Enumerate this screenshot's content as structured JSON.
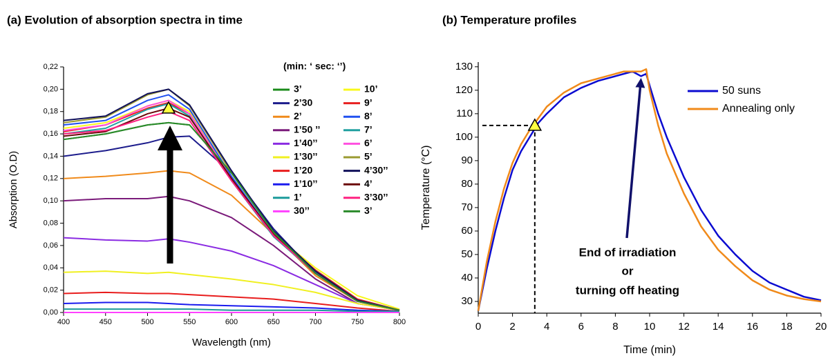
{
  "chart_data": [
    {
      "type": "line",
      "title": "(a) Evolution of absorption spectra in time",
      "x_label": "Wavelength (nm)",
      "y_label": "Absorption (O.D)",
      "legend_title": "(min: ‘    sec: ‘’)",
      "xlim": [
        400,
        800
      ],
      "ylim": [
        0,
        0.22
      ],
      "xticks": [
        400,
        450,
        500,
        550,
        600,
        650,
        700,
        750,
        800
      ],
      "yticks": [
        {
          "value": 0,
          "label": "0,00"
        },
        {
          "value": 0.02,
          "label": "0,02"
        },
        {
          "value": 0.04,
          "label": "0,04"
        },
        {
          "value": 0.06,
          "label": "0,06"
        },
        {
          "value": 0.08,
          "label": "0,08"
        },
        {
          "value": 0.1,
          "label": "0,10"
        },
        {
          "value": 0.12,
          "label": "0,12"
        },
        {
          "value": 0.14,
          "label": "0,14"
        },
        {
          "value": 0.16,
          "label": "0,16"
        },
        {
          "value": 0.18,
          "label": "0,18"
        },
        {
          "value": 0.2,
          "label": "0,20"
        },
        {
          "value": 0.22,
          "label": "0,22"
        }
      ],
      "x": [
        400,
        450,
        500,
        525,
        550,
        600,
        650,
        700,
        750,
        800
      ],
      "marker": {
        "x": 525,
        "y": 0.183
      },
      "series": [
        {
          "name": "3’",
          "color": "#1a8a1a",
          "values": [
            0.155,
            0.16,
            0.168,
            0.17,
            0.168,
            0.125,
            0.072,
            0.035,
            0.01,
            0.002
          ]
        },
        {
          "name": "2’30",
          "color": "#1c1c8c",
          "values": [
            0.14,
            0.145,
            0.152,
            0.157,
            0.158,
            0.125,
            0.075,
            0.035,
            0.01,
            0.002
          ]
        },
        {
          "name": "2’",
          "color": "#f08a1a",
          "values": [
            0.12,
            0.122,
            0.125,
            0.127,
            0.125,
            0.105,
            0.07,
            0.033,
            0.01,
            0.002
          ]
        },
        {
          "name": "1’50 ’’",
          "color": "#7a1a7a",
          "values": [
            0.1,
            0.102,
            0.102,
            0.104,
            0.1,
            0.085,
            0.06,
            0.03,
            0.008,
            0.002
          ]
        },
        {
          "name": "1’40’’",
          "color": "#8a2be2",
          "values": [
            0.067,
            0.065,
            0.064,
            0.066,
            0.063,
            0.055,
            0.042,
            0.025,
            0.008,
            0.002
          ]
        },
        {
          "name": "1’30’’",
          "color": "#f0f020",
          "values": [
            0.036,
            0.037,
            0.035,
            0.036,
            0.034,
            0.03,
            0.025,
            0.018,
            0.008,
            0.002
          ]
        },
        {
          "name": "1’20",
          "color": "#e81c1c",
          "values": [
            0.017,
            0.018,
            0.017,
            0.017,
            0.016,
            0.014,
            0.012,
            0.008,
            0.004,
            0.001
          ]
        },
        {
          "name": "1’10’’",
          "color": "#1a1aee",
          "values": [
            0.008,
            0.009,
            0.009,
            0.008,
            0.007,
            0.006,
            0.005,
            0.004,
            0.002,
            0.001
          ]
        },
        {
          "name": "1’",
          "color": "#1a9a9a",
          "values": [
            0.003,
            0.003,
            0.003,
            0.003,
            0.003,
            0.002,
            0.002,
            0.002,
            0.001,
            0.001
          ]
        },
        {
          "name": "30’’",
          "color": "#ff40ff",
          "values": [
            0,
            0,
            0,
            0,
            0,
            0,
            0,
            0,
            0,
            0
          ]
        },
        {
          "name": "10’",
          "color": "#f8f81a",
          "values": [
            0.165,
            0.17,
            0.185,
            0.19,
            0.18,
            0.12,
            0.07,
            0.04,
            0.015,
            0.003
          ]
        },
        {
          "name": "9’",
          "color": "#e82020",
          "values": [
            0.162,
            0.168,
            0.183,
            0.188,
            0.178,
            0.12,
            0.07,
            0.038,
            0.012,
            0.002
          ]
        },
        {
          "name": "8’",
          "color": "#2050f0",
          "values": [
            0.168,
            0.172,
            0.19,
            0.195,
            0.182,
            0.122,
            0.07,
            0.036,
            0.011,
            0.002
          ]
        },
        {
          "name": "7’",
          "color": "#20a0a0",
          "values": [
            0.16,
            0.165,
            0.182,
            0.187,
            0.176,
            0.118,
            0.068,
            0.035,
            0.01,
            0.002
          ]
        },
        {
          "name": "6’",
          "color": "#ff50e0",
          "values": [
            0.163,
            0.168,
            0.185,
            0.19,
            0.178,
            0.12,
            0.069,
            0.035,
            0.01,
            0.002
          ]
        },
        {
          "name": "5’",
          "color": "#9a9a30",
          "values": [
            0.17,
            0.175,
            0.195,
            0.2,
            0.185,
            0.125,
            0.072,
            0.037,
            0.011,
            0.002
          ]
        },
        {
          "name": "4’30’’",
          "color": "#10105a",
          "values": [
            0.172,
            0.176,
            0.196,
            0.2,
            0.186,
            0.127,
            0.073,
            0.037,
            0.011,
            0.002
          ]
        },
        {
          "name": "4’",
          "color": "#6a0a0a",
          "values": [
            0.158,
            0.162,
            0.178,
            0.183,
            0.175,
            0.12,
            0.07,
            0.035,
            0.01,
            0.002
          ]
        },
        {
          "name": "3’30’’",
          "color": "#ff2080",
          "values": [
            0.16,
            0.163,
            0.175,
            0.18,
            0.172,
            0.118,
            0.069,
            0.035,
            0.01,
            0.002
          ]
        },
        {
          "name": "3’",
          "color": "#2a8a2a",
          "values": [
            0.155,
            0.16,
            0.168,
            0.17,
            0.168,
            0.125,
            0.072,
            0.035,
            0.01,
            0.002
          ]
        }
      ]
    },
    {
      "type": "line",
      "title": "(b) Temperature profiles",
      "x_label": "Time (min)",
      "y_label": "Temperature (°C)",
      "annotations": [
        "End of irradiation",
        "or",
        "turning off heating"
      ],
      "xlim": [
        0,
        20
      ],
      "ylim": [
        25,
        132
      ],
      "xticks": [
        0,
        2,
        4,
        6,
        8,
        10,
        12,
        14,
        16,
        18,
        20
      ],
      "yticks": [
        30,
        40,
        50,
        60,
        70,
        80,
        90,
        100,
        110,
        120,
        130
      ],
      "x": [
        0,
        0.5,
        1,
        1.5,
        2,
        2.5,
        3,
        3.5,
        4,
        5,
        6,
        7,
        8,
        8.5,
        9,
        9.5,
        9.8,
        10,
        10.5,
        11,
        12,
        13,
        14,
        15,
        16,
        17,
        18,
        19,
        20
      ],
      "marker": {
        "x": 3.3,
        "y": 105
      },
      "series": [
        {
          "name": "50 suns",
          "color": "#0b0bd0",
          "values": [
            26,
            44,
            60,
            74,
            86,
            94,
            100,
            106,
            110,
            117,
            121,
            124,
            126,
            127,
            128,
            126,
            127,
            122,
            110,
            100,
            83,
            69,
            58,
            50,
            43,
            38,
            35,
            32,
            30.5
          ]
        },
        {
          "name": "Annealing only",
          "color": "#f08a1a",
          "values": [
            26,
            47,
            64,
            78,
            89,
            97,
            103,
            108,
            113,
            119,
            123,
            125,
            127,
            128,
            128,
            128,
            129,
            120,
            105,
            93,
            76,
            62,
            52,
            45,
            39,
            35,
            32.5,
            31,
            30
          ]
        }
      ]
    }
  ]
}
